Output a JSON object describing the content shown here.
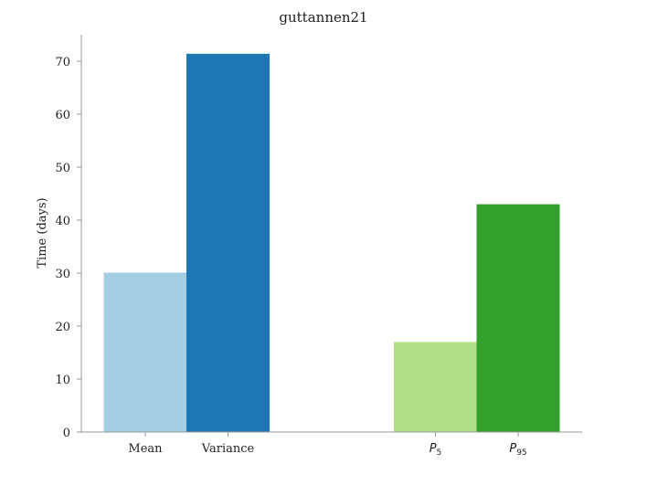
{
  "chart_data": {
    "type": "bar",
    "title": "guttannen21",
    "xlabel": "",
    "ylabel": "Time (days)",
    "ylim": [
      0,
      75
    ],
    "yticks": [
      0,
      10,
      20,
      30,
      40,
      50,
      60,
      70
    ],
    "grid": false,
    "legend": "none",
    "bars": [
      {
        "label": "Mean",
        "value": 30.1,
        "color": "#a6cee3"
      },
      {
        "label": "Variance",
        "value": 71.4,
        "color": "#1f78b4"
      },
      {
        "label": "P",
        "sub": "5",
        "value": 17.0,
        "color": "#b2df8a"
      },
      {
        "label": "P",
        "sub": "95",
        "value": 43.0,
        "color": "#33a02c"
      }
    ]
  }
}
